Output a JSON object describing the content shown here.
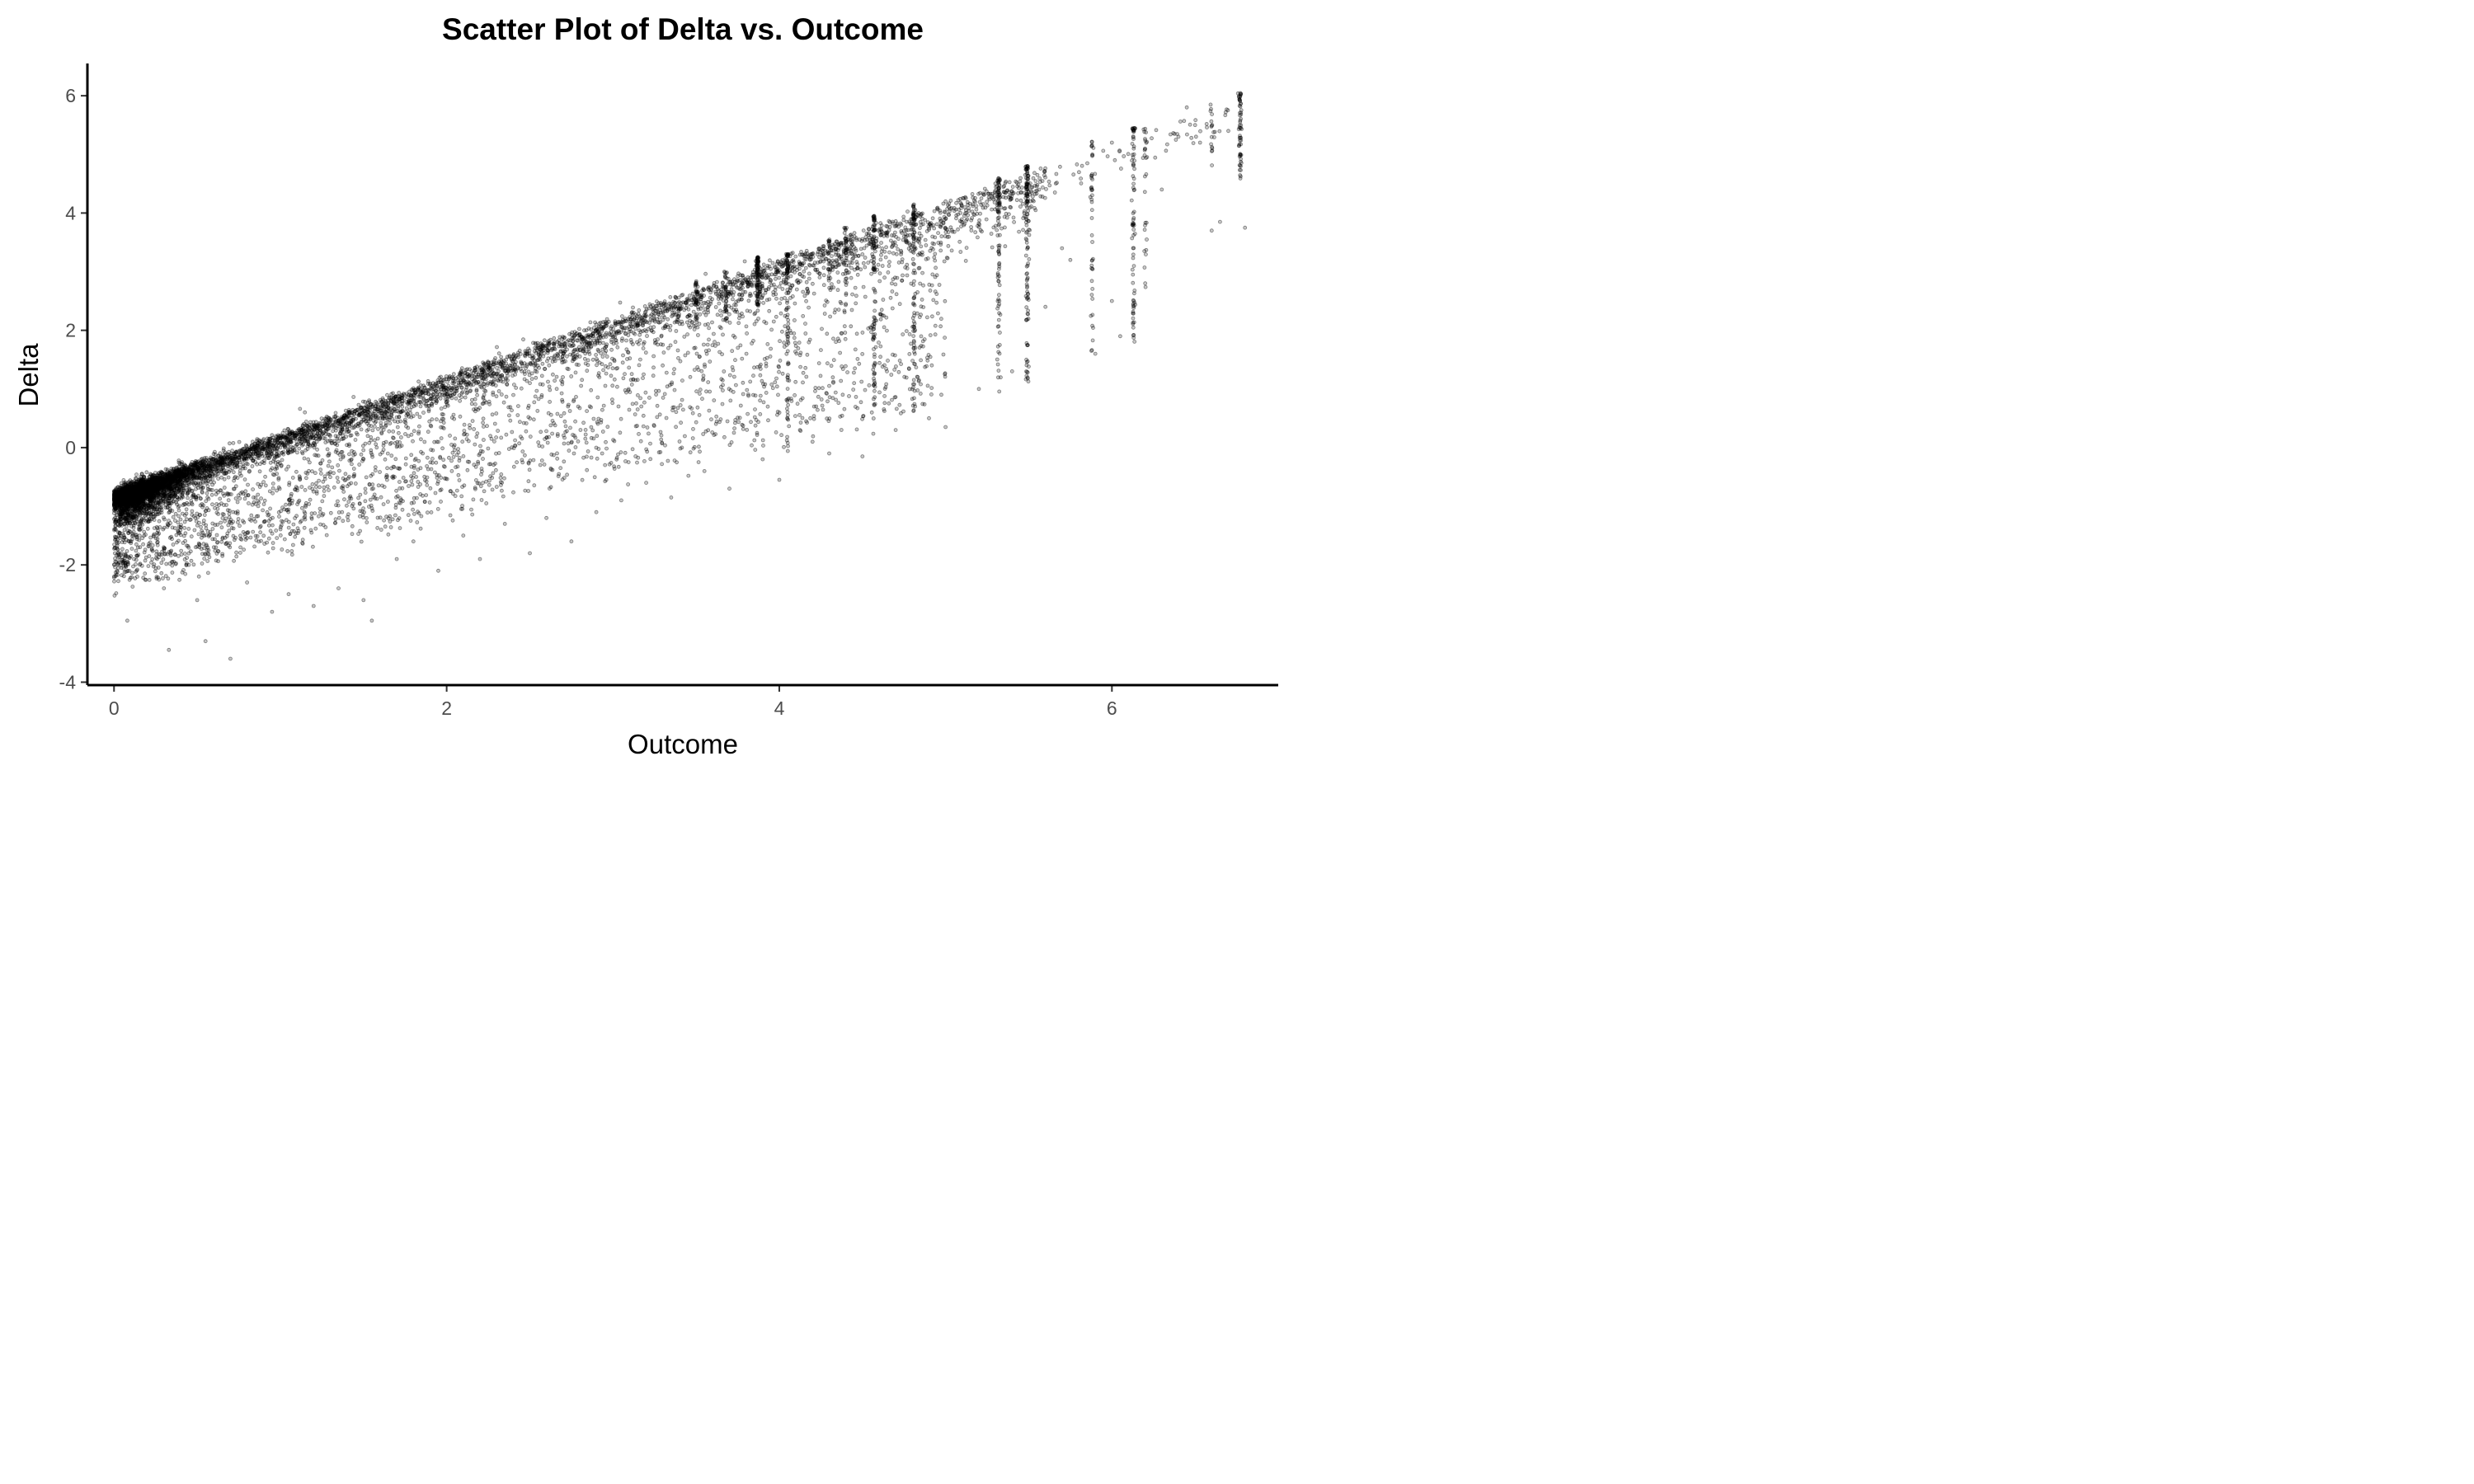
{
  "chart_data": {
    "type": "scatter",
    "title": "Scatter Plot of Delta vs. Outcome",
    "xlabel": "Outcome",
    "ylabel": "Delta",
    "xlim": [
      -0.16,
      7.0
    ],
    "ylim": [
      -4.05,
      6.55
    ],
    "xticks": [
      0,
      2,
      4,
      6
    ],
    "yticks": [
      -4,
      -2,
      0,
      2,
      4,
      6
    ],
    "grid": false,
    "legend": "none",
    "point_color": "#000000",
    "series": [
      {
        "description_free": true,
        "points": [
          [
            0.02,
            -0.72
          ],
          [
            0.05,
            -0.9
          ],
          [
            0.08,
            -1.05
          ],
          [
            0.1,
            -0.6
          ],
          [
            0.12,
            -0.8
          ],
          [
            0.15,
            -0.95
          ],
          [
            0.18,
            -0.7
          ],
          [
            0.2,
            -1.1
          ],
          [
            0.22,
            -0.55
          ],
          [
            0.25,
            -0.75
          ],
          [
            0.06,
            -1.3
          ],
          [
            0.09,
            -1.6
          ],
          [
            0.12,
            -1.9
          ],
          [
            0.14,
            -2.2
          ],
          [
            0.08,
            -2.95
          ],
          [
            0.33,
            -3.45
          ],
          [
            0.55,
            -3.3
          ],
          [
            0.7,
            -3.6
          ],
          [
            0.3,
            -2.4
          ],
          [
            0.45,
            -2.0
          ],
          [
            0.5,
            -2.6
          ],
          [
            0.6,
            -1.7
          ],
          [
            0.8,
            -2.3
          ],
          [
            0.95,
            -2.8
          ],
          [
            1.05,
            -2.5
          ],
          [
            1.2,
            -2.7
          ],
          [
            1.35,
            -2.4
          ],
          [
            1.5,
            -2.6
          ],
          [
            1.55,
            -2.95
          ],
          [
            1.7,
            -1.9
          ],
          [
            1.8,
            -1.6
          ],
          [
            1.95,
            -2.1
          ],
          [
            2.1,
            -1.5
          ],
          [
            2.2,
            -1.9
          ],
          [
            2.35,
            -1.3
          ],
          [
            2.5,
            -1.8
          ],
          [
            2.6,
            -1.2
          ],
          [
            2.75,
            -1.6
          ],
          [
            2.9,
            -1.1
          ],
          [
            3.05,
            -0.9
          ],
          [
            3.2,
            -0.6
          ],
          [
            3.35,
            -0.85
          ],
          [
            3.55,
            -0.4
          ],
          [
            3.7,
            -0.7
          ],
          [
            3.9,
            -0.2
          ],
          [
            4.0,
            -0.55
          ],
          [
            4.2,
            0.1
          ],
          [
            4.3,
            -0.1
          ],
          [
            4.5,
            -0.15
          ],
          [
            4.7,
            0.3
          ],
          [
            4.9,
            0.5
          ],
          [
            5.0,
            0.35
          ],
          [
            5.2,
            1.0
          ],
          [
            5.4,
            1.3
          ],
          [
            5.6,
            2.4
          ],
          [
            5.7,
            3.4
          ],
          [
            5.75,
            3.2
          ],
          [
            5.9,
            1.6
          ],
          [
            6.0,
            2.5
          ],
          [
            6.05,
            1.9
          ],
          [
            6.2,
            2.8
          ],
          [
            6.3,
            4.4
          ],
          [
            6.6,
            3.7
          ],
          [
            6.65,
            3.85
          ],
          [
            6.8,
            3.75
          ],
          [
            6.7,
            5.4
          ],
          [
            6.5,
            5.5
          ],
          [
            6.45,
            5.8
          ],
          [
            6.4,
            5.3
          ],
          [
            6.0,
            5.2
          ]
        ]
      }
    ]
  }
}
